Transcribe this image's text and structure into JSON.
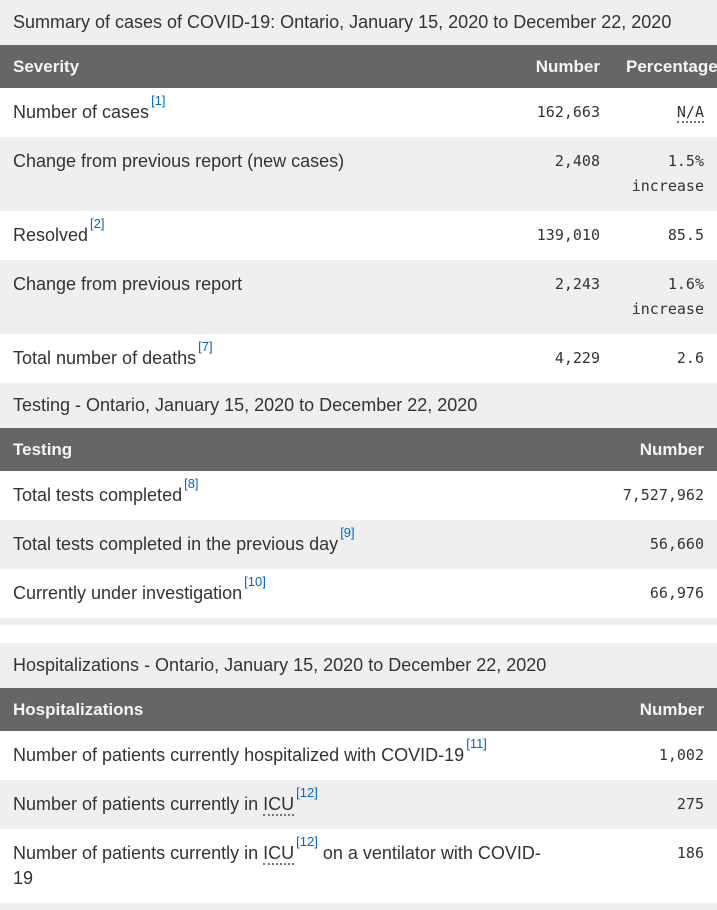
{
  "colors": {
    "header_bg": "#666666",
    "header_text": "#f5f5f5",
    "caption_bg": "#efefef",
    "alt_row_bg": "#efefef",
    "footnote_link": "#0066cc",
    "body_text": "#333333"
  },
  "tables": [
    {
      "caption": "Summary of cases of COVID-19: Ontario, January 15, 2020 to December 22, 2020",
      "col_label": "Severity",
      "col_number": "Number",
      "col_percentage": "Percentage",
      "rows": [
        {
          "label": "Number of cases",
          "footnote": "[1]",
          "number": "162,663",
          "pct_abbr": "N/A"
        },
        {
          "label": "Change from previous report (new cases)",
          "number": "2,408",
          "pct": "1.5%",
          "pct2": "increase"
        },
        {
          "label": "Resolved",
          "footnote": "[2]",
          "number": "139,010",
          "pct": "85.5"
        },
        {
          "label": "Change from previous report",
          "number": "2,243",
          "pct": "1.6%",
          "pct2": "increase"
        },
        {
          "label": "Total number of deaths",
          "footnote": "[7]",
          "number": "4,229",
          "pct": "2.6"
        }
      ]
    },
    {
      "caption": "Testing - Ontario, January 15, 2020 to December 22, 2020",
      "col_label": "Testing",
      "col_number": "Number",
      "rows": [
        {
          "label": "Total tests completed",
          "footnote": "[8]",
          "number": "7,527,962"
        },
        {
          "label": "Total tests completed in the previous day",
          "footnote": "[9]",
          "number": "56,660"
        },
        {
          "label": "Currently under investigation",
          "footnote": "[10]",
          "number": "66,976"
        }
      ]
    },
    {
      "caption": "Hospitalizations - Ontario, January 15, 2020 to December 22, 2020",
      "col_label": "Hospitalizations",
      "col_number": "Number",
      "rows": [
        {
          "label": "Number of patients currently hospitalized with COVID-19",
          "footnote": "[11]",
          "number": "1,002"
        },
        {
          "label": "Number of patients currently in",
          "abbr": "ICU",
          "footnote": "[12]",
          "number": "275"
        },
        {
          "label": "Number of patients currently in",
          "abbr": "ICU",
          "footnote": "[12]",
          "label_after": "on a ventilator with COVID-19",
          "number": "186"
        }
      ]
    }
  ]
}
